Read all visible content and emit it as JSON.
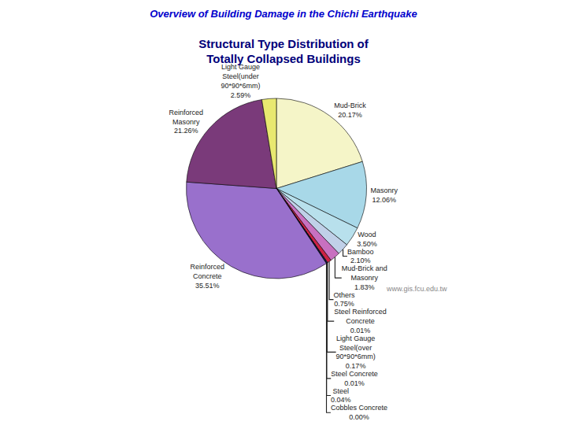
{
  "chart_data": {
    "type": "pie",
    "title": "Structural Type Distribution of\nTotally Collapsed Buildings",
    "annotations": [
      "Overview of Building Damage in the Chichi Earthquake",
      "www.gis.fcu.edu.tw"
    ],
    "categories": [
      "Mud-Brick",
      "Masonry",
      "Wood",
      "Bamboo",
      "Mud-Brick and\nMasonry",
      "Others",
      "Steel Reinforced\nConcrete",
      "Light Gauge\nSteel(over\n90*90*6mm)",
      "Steel Concrete",
      "Steel",
      "Cobbles Concrete",
      "Reinforced\nConcrete",
      "Reinforced\nMasonry",
      "Light Gauge\nSteel(under\n90*90*6mm)"
    ],
    "values": [
      20.17,
      12.06,
      3.5,
      2.1,
      1.83,
      0.75,
      0.01,
      0.17,
      0.01,
      0.04,
      0.003,
      35.51,
      21.26,
      2.59
    ],
    "value_labels": [
      "20.17%",
      "12.06%",
      "3.50%",
      "2.10%",
      "1.83%",
      "0.75%",
      "0.01%",
      "0.17%",
      "0.01%",
      "0.04%",
      "0.00%",
      "35.51%",
      "21.26%",
      "2.59%"
    ],
    "colors": [
      "#F5F5C8",
      "#A8D8E8",
      "#B8E0EC",
      "#C0D0E8",
      "#C870C0",
      "#CC2244",
      "#F090B0",
      "#2244AA",
      "#4488CC",
      "#88AADD",
      "#889898",
      "#9970CC",
      "#7A3A7A",
      "#E8E870"
    ],
    "data_labels": true
  }
}
